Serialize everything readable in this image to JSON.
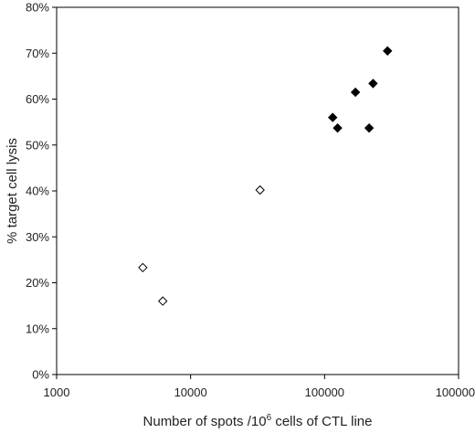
{
  "chart_data": {
    "type": "scatter",
    "title": "",
    "xlabel_parts": {
      "prefix": "Number of spots /10",
      "superscript": "6",
      "suffix": " cells of CTL line"
    },
    "ylabel": "% target cell lysis",
    "x_scale": "log",
    "xlim": [
      1000,
      1000000
    ],
    "ylim": [
      0,
      0.8
    ],
    "x_ticks": [
      1000,
      10000,
      100000,
      1000000
    ],
    "x_tick_labels": [
      "1000",
      "10000",
      "100000",
      "1000000"
    ],
    "y_ticks": [
      0,
      0.1,
      0.2,
      0.3,
      0.4,
      0.5,
      0.6,
      0.7,
      0.8
    ],
    "y_tick_labels": [
      "0%",
      "10%",
      "20%",
      "30%",
      "40%",
      "50%",
      "60%",
      "70%",
      "80%"
    ],
    "grid": false,
    "legend": "none",
    "series": [
      {
        "marker": "diamond-open",
        "color": "#000000",
        "points": [
          {
            "x": 4400,
            "y": 0.233
          },
          {
            "x": 6200,
            "y": 0.16
          },
          {
            "x": 33000,
            "y": 0.402
          }
        ]
      },
      {
        "marker": "diamond-filled",
        "color": "#000000",
        "points": [
          {
            "x": 115000,
            "y": 0.56
          },
          {
            "x": 125000,
            "y": 0.537
          },
          {
            "x": 170000,
            "y": 0.615
          },
          {
            "x": 215000,
            "y": 0.537
          },
          {
            "x": 230000,
            "y": 0.634
          },
          {
            "x": 295000,
            "y": 0.705
          }
        ]
      }
    ]
  }
}
